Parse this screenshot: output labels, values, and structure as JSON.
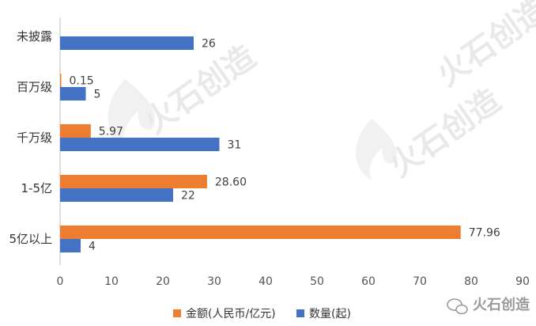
{
  "chart_data": {
    "type": "bar",
    "orientation": "horizontal",
    "categories": [
      "未披露",
      "百万级",
      "千万级",
      "1-5亿",
      "5亿以上"
    ],
    "series": [
      {
        "name": "金额(人民币/亿元)",
        "color": "#ED7D31",
        "values": [
          null,
          0.15,
          5.97,
          28.6,
          77.96
        ],
        "labels": [
          "",
          "0.15",
          "5.97",
          "28.60",
          "77.96"
        ]
      },
      {
        "name": "数量(起)",
        "color": "#4472C4",
        "values": [
          26,
          5,
          31,
          22,
          4
        ],
        "labels": [
          "26",
          "5",
          "31",
          "22",
          "4"
        ]
      }
    ],
    "xlim": [
      0,
      90
    ],
    "xticks": [
      "0",
      "10",
      "20",
      "30",
      "40",
      "50",
      "60",
      "70",
      "80",
      "90"
    ],
    "grid": false,
    "legend_position": "bottom",
    "title": "",
    "xlabel": "",
    "ylabel": ""
  },
  "watermark": {
    "text": "火石创造",
    "corner_text": "火石创造"
  }
}
